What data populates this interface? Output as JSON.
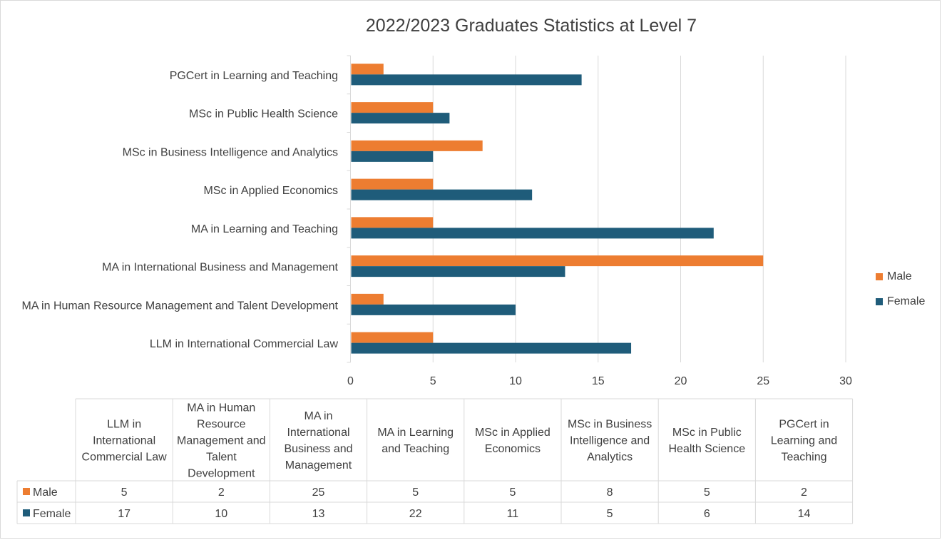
{
  "chart_data": {
    "type": "bar",
    "orientation": "horizontal",
    "title": "2022/2023 Graduates Statistics at Level 7",
    "categories": [
      "LLM in International Commercial Law",
      "MA in Human Resource Management and Talent Development",
      "MA in International Business and Management",
      "MA in Learning and Teaching",
      "MSc in Applied Economics",
      "MSc in Business Intelligence and Analytics",
      "MSc in Public Health Science",
      "PGCert  in Learning and Teaching"
    ],
    "series": [
      {
        "name": "Male",
        "color": "#ed7d31",
        "values": [
          5,
          2,
          25,
          5,
          5,
          8,
          5,
          2
        ]
      },
      {
        "name": "Female",
        "color": "#1f5c7a",
        "values": [
          17,
          10,
          13,
          22,
          11,
          5,
          6,
          14
        ]
      }
    ],
    "xlim": [
      0,
      30
    ],
    "xticks": [
      "0",
      "5",
      "10",
      "15",
      "20",
      "25",
      "30"
    ],
    "grid": true,
    "legend": "right",
    "data_table": true,
    "table_headers": [
      [
        "LLM in",
        "International",
        "Commercial Law"
      ],
      [
        "MA in Human",
        "Resource",
        "Management and",
        "Talent",
        "Development"
      ],
      [
        "MA in",
        "International",
        "Business and",
        "Management"
      ],
      [
        "MA in Learning",
        "and Teaching"
      ],
      [
        "MSc in Applied",
        "Economics"
      ],
      [
        "MSc in Business",
        "Intelligence and",
        "Analytics"
      ],
      [
        "MSc in Public",
        "Health Science"
      ],
      [
        "PGCert  in",
        "Learning and",
        "Teaching"
      ]
    ]
  }
}
